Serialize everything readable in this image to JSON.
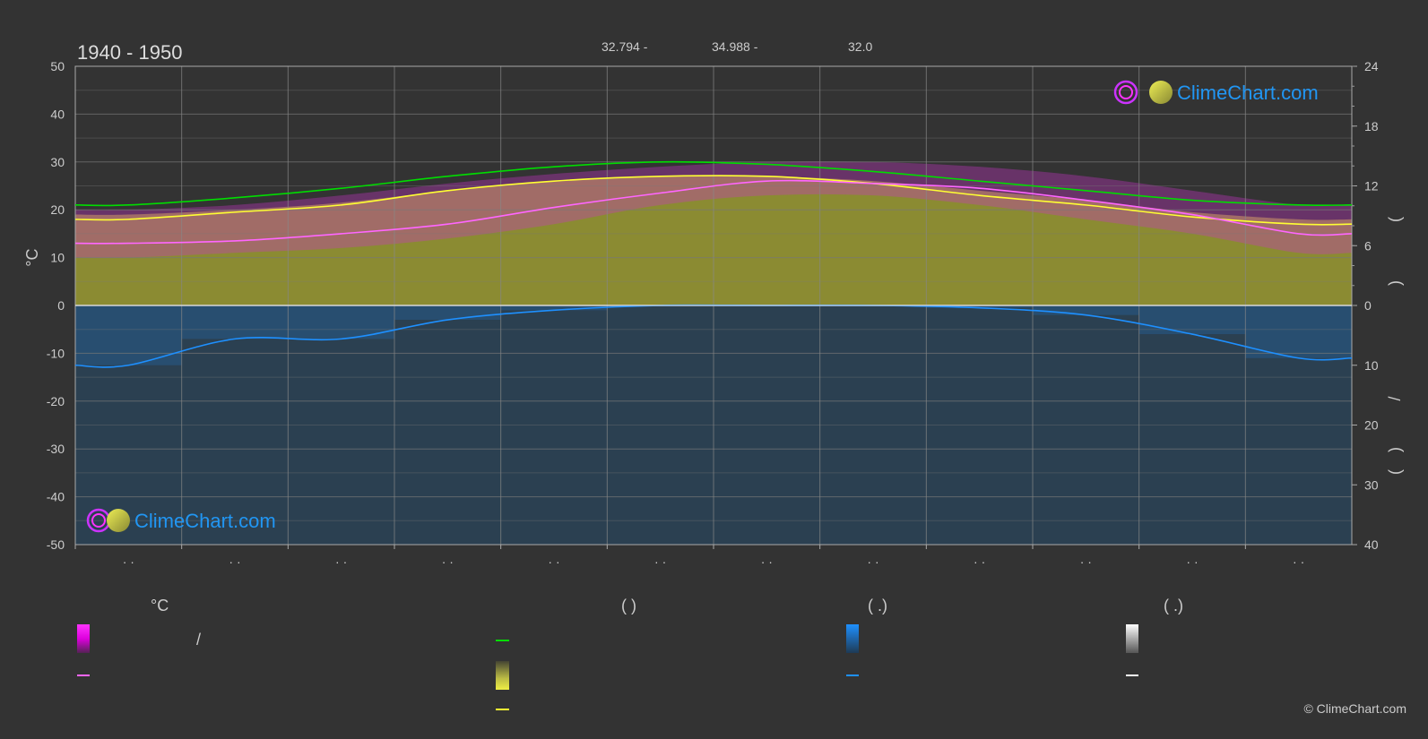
{
  "title": "1940 - 1950",
  "coords": {
    "lat": "32.794 -",
    "lon": "34.988 -",
    "elev": "32.0"
  },
  "logo_text": "ClimeChart.com",
  "copyright": "© ClimeChart.com",
  "colors": {
    "background": "#333333",
    "temp_fill": "#aaaa33",
    "precip_fill": "#1e5a8a",
    "max_temp": "#00dd00",
    "day_mean": "#ff66ff",
    "sunshine": "#ffff33",
    "rain": "#1e90ff",
    "extreme_band": "#cc33cc"
  },
  "legend": {
    "col1_header": "°C",
    "col1_slash": "/",
    "col2_header": "(            )",
    "col3_header": "(    .)",
    "col4_header": "(    .)"
  },
  "right_axis_label": "(   )   /   (   ·   )",
  "chart_data": {
    "type": "line",
    "x_categories": [
      "· ·",
      "· ·",
      "· ·",
      "· ·",
      "· ·",
      "· ·",
      "· ·",
      "· ·",
      "· ·",
      "· ·",
      "· ·",
      "· ·"
    ],
    "ylabel": "°C",
    "ylim": [
      -50,
      50
    ],
    "y_ticks": [
      50,
      40,
      30,
      20,
      10,
      0,
      -10,
      -20,
      -30,
      -40,
      -50
    ],
    "y2_upper_ticks": [
      24,
      18,
      12,
      6,
      0
    ],
    "y2_lower_ticks": [
      10,
      20,
      30,
      40
    ],
    "grid": true,
    "series": [
      {
        "key": "max_line",
        "color": "#00dd00",
        "values": [
          21,
          22.5,
          24.5,
          27,
          29,
          30,
          29.5,
          28,
          26,
          24,
          22,
          21
        ]
      },
      {
        "key": "sun_line",
        "color": "#ffff33",
        "values": [
          18,
          19.5,
          21,
          24,
          26,
          27,
          27,
          25.5,
          23,
          21,
          18.5,
          17
        ]
      },
      {
        "key": "mean_line",
        "color": "#ff66ff",
        "values": [
          13,
          13.5,
          15,
          17,
          20.5,
          23.5,
          26,
          25.5,
          24.5,
          22,
          19,
          15
        ]
      },
      {
        "key": "rain_line",
        "color": "#1e90ff",
        "values": [
          -12.5,
          -7,
          -7,
          -3,
          -1,
          0,
          0,
          0,
          -0.5,
          -2,
          -6,
          -11
        ]
      }
    ],
    "temp_band": {
      "top": [
        19,
        20,
        21.5,
        24,
        26,
        27,
        27,
        26,
        24,
        22,
        19.5,
        18
      ]
    },
    "extreme_band": {
      "upper": [
        20,
        21,
        23,
        25.5,
        27.5,
        29,
        30,
        30,
        29,
        27,
        24,
        21
      ],
      "lower": [
        10,
        11,
        12,
        14,
        17,
        21,
        23,
        23,
        21,
        18,
        15,
        11
      ]
    }
  }
}
